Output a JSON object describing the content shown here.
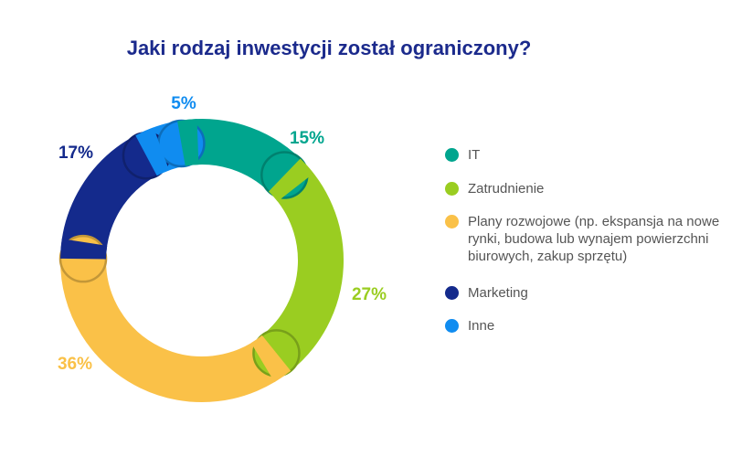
{
  "chart_data": {
    "type": "pie",
    "variant": "donut",
    "title": "Jaki rodzaj inwestycji został ograniczony?",
    "categories": [
      "IT",
      "Zatrudnienie",
      "Plany rozwojowe (np. ekspansja na nowe rynki, budowa lub wynajem powierzchni biurowych, zakup sprzętu)",
      "Marketing",
      "Inne"
    ],
    "values": [
      15,
      27,
      36,
      17,
      5
    ],
    "labels": [
      "15%",
      "27%",
      "36%",
      "17%",
      "5%"
    ],
    "colors": [
      "#00a58e",
      "#9acd21",
      "#fac148",
      "#142a8c",
      "#108cf0"
    ],
    "legend_position": "right"
  }
}
